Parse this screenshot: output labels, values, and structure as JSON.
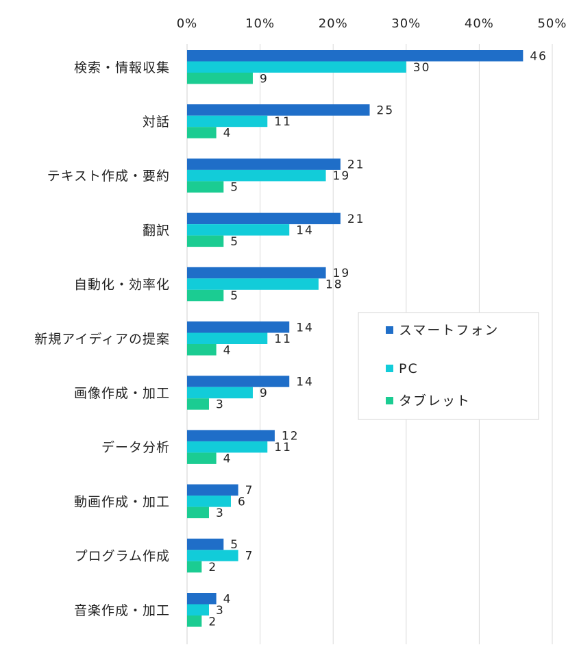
{
  "chart_data": {
    "type": "bar",
    "orientation": "horizontal",
    "xlim": [
      0,
      50
    ],
    "x_ticks": [
      "0%",
      "10%",
      "20%",
      "30%",
      "40%",
      "50%"
    ],
    "x_axis_position": "top",
    "grid": true,
    "legend_position": "right-middle",
    "categories": [
      "検索・情報収集",
      "対話",
      "テキスト作成・要約",
      "翻訳",
      "自動化・効率化",
      "新規アイディアの提案",
      "画像作成・加工",
      "データ分析",
      "動画作成・加工",
      "プログラム作成",
      "音楽作成・加工"
    ],
    "series": [
      {
        "name": "スマートフォン",
        "color": "#1F6EC8",
        "values": [
          46,
          25,
          21,
          21,
          19,
          14,
          14,
          12,
          7,
          5,
          4
        ]
      },
      {
        "name": "PC",
        "color": "#12CCD9",
        "values": [
          30,
          11,
          19,
          14,
          18,
          11,
          9,
          11,
          6,
          7,
          3
        ]
      },
      {
        "name": "タブレット",
        "color": "#1BCC92",
        "values": [
          9,
          4,
          5,
          5,
          5,
          4,
          3,
          4,
          3,
          2,
          2
        ]
      }
    ]
  }
}
